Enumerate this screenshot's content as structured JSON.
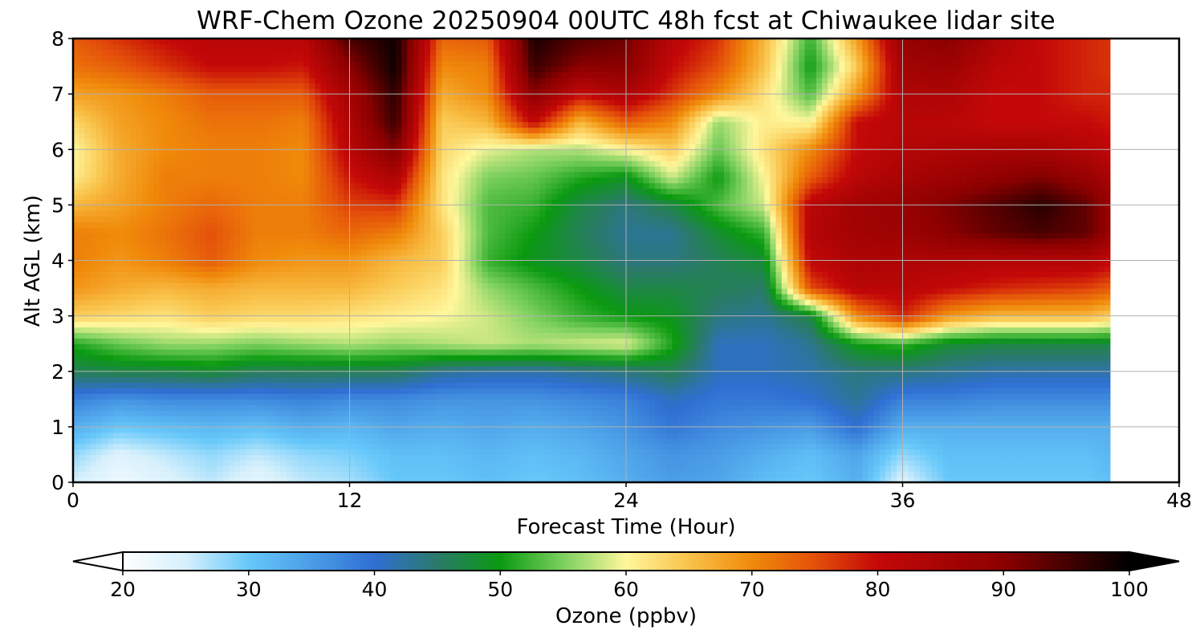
{
  "chart_data": {
    "type": "heatmap",
    "title": "WRF-Chem Ozone  20250904 00UTC 48h fcst at Chiwaukee lidar site",
    "xlabel": "Forecast Time (Hour)",
    "ylabel": "Alt AGL (km)",
    "xlim": [
      0,
      48
    ],
    "ylim": [
      0,
      8
    ],
    "x_ticks": [
      "0",
      "12",
      "24",
      "36",
      "48"
    ],
    "y_ticks": [
      "0",
      "1",
      "2",
      "3",
      "4",
      "5",
      "6",
      "7",
      "8"
    ],
    "grid": true,
    "colorbar": {
      "label": "Ozone  (ppbv)",
      "range": [
        20,
        100
      ],
      "ticks": [
        "20",
        "30",
        "40",
        "50",
        "60",
        "70",
        "80",
        "90",
        "100"
      ],
      "extend": "both",
      "stops": [
        [
          20,
          "#ffffff"
        ],
        [
          25,
          "#d6f0fc"
        ],
        [
          30,
          "#66c8fa"
        ],
        [
          35,
          "#4a9de6"
        ],
        [
          40,
          "#2f6fd2"
        ],
        [
          45,
          "#2b7a6a"
        ],
        [
          50,
          "#0a9a10"
        ],
        [
          55,
          "#7cd05e"
        ],
        [
          60,
          "#fff79c"
        ],
        [
          65,
          "#f9c24a"
        ],
        [
          70,
          "#f08a0a"
        ],
        [
          75,
          "#e4500a"
        ],
        [
          80,
          "#c40808"
        ],
        [
          90,
          "#8c0000"
        ],
        [
          100,
          "#000000"
        ]
      ]
    },
    "x": [
      0,
      2,
      4,
      6,
      8,
      10,
      12,
      14,
      16,
      18,
      20,
      22,
      24,
      26,
      28,
      30,
      32,
      34,
      36,
      38,
      40,
      42,
      44,
      45
    ],
    "y": [
      0,
      0.5,
      1,
      1.5,
      2,
      2.5,
      3,
      3.5,
      4,
      4.5,
      5,
      5.5,
      6,
      6.5,
      7,
      7.5,
      8
    ],
    "z": [
      [
        25,
        22,
        24,
        26,
        23,
        26,
        27,
        30,
        30,
        31,
        30,
        31,
        33,
        35,
        34,
        31,
        30,
        33,
        24,
        30,
        30,
        30,
        30,
        31
      ],
      [
        28,
        24,
        26,
        28,
        26,
        28,
        29,
        31,
        31,
        32,
        31,
        32,
        34,
        36,
        35,
        33,
        31,
        34,
        28,
        31,
        31,
        31,
        31,
        32
      ],
      [
        33,
        30,
        31,
        32,
        31,
        33,
        32,
        34,
        33,
        34,
        33,
        34,
        36,
        39,
        37,
        36,
        35,
        40,
        33,
        33,
        33,
        33,
        33,
        33
      ],
      [
        38,
        36,
        37,
        37,
        37,
        38,
        37,
        37,
        36,
        36,
        36,
        37,
        38,
        41,
        39,
        39,
        40,
        43,
        38,
        38,
        37,
        37,
        37,
        37
      ],
      [
        46,
        47,
        47,
        48,
        46,
        46,
        46,
        46,
        43,
        42,
        42,
        43,
        44,
        46,
        41,
        41,
        42,
        44,
        44,
        43,
        42,
        42,
        42,
        42
      ],
      [
        51,
        54,
        56,
        56,
        55,
        56,
        57,
        56,
        57,
        58,
        57,
        58,
        59,
        51,
        41,
        41,
        43,
        50,
        52,
        48,
        47,
        47,
        47,
        47
      ],
      [
        64,
        63,
        62,
        64,
        63,
        63,
        62,
        61,
        60,
        58,
        55,
        52,
        50,
        49,
        44,
        43,
        47,
        70,
        78,
        69,
        66,
        66,
        66,
        64
      ],
      [
        69,
        67,
        66,
        67,
        66,
        66,
        66,
        64,
        62,
        56,
        53,
        50,
        47,
        47,
        46,
        45,
        75,
        82,
        82,
        80,
        78,
        77,
        76,
        74
      ],
      [
        71,
        69,
        71,
        74,
        70,
        69,
        69,
        66,
        64,
        52,
        49,
        47,
        44,
        44,
        46,
        48,
        81,
        84,
        84,
        84,
        83,
        83,
        83,
        81
      ],
      [
        71,
        70,
        72,
        75,
        71,
        71,
        73,
        71,
        64,
        53,
        50,
        46,
        43,
        43,
        48,
        52,
        83,
        86,
        87,
        90,
        93,
        95,
        93,
        88
      ],
      [
        66,
        68,
        71,
        73,
        71,
        71,
        76,
        77,
        62,
        53,
        52,
        47,
        44,
        47,
        53,
        58,
        82,
        86,
        88,
        91,
        94,
        97,
        93,
        88
      ],
      [
        61,
        67,
        71,
        71,
        71,
        70,
        79,
        84,
        62,
        55,
        54,
        51,
        49,
        58,
        50,
        60,
        74,
        82,
        85,
        87,
        89,
        91,
        88,
        85
      ],
      [
        60,
        67,
        70,
        71,
        71,
        70,
        82,
        91,
        63,
        59,
        57,
        57,
        60,
        64,
        54,
        62,
        70,
        80,
        83,
        84,
        85,
        85,
        83,
        81
      ],
      [
        63,
        68,
        70,
        72,
        72,
        71,
        84,
        96,
        64,
        66,
        81,
        66,
        74,
        70,
        56,
        61,
        60,
        80,
        82,
        82,
        80,
        80,
        80,
        79
      ],
      [
        68,
        69,
        71,
        74,
        74,
        74,
        86,
        97,
        67,
        70,
        90,
        80,
        84,
        77,
        70,
        62,
        53,
        69,
        84,
        84,
        80,
        80,
        78,
        78
      ],
      [
        72,
        74,
        77,
        80,
        80,
        79,
        90,
        99,
        70,
        71,
        96,
        90,
        90,
        80,
        75,
        65,
        50,
        64,
        86,
        87,
        82,
        80,
        78,
        77
      ],
      [
        74,
        77,
        80,
        82,
        82,
        82,
        95,
        99,
        73,
        74,
        98,
        94,
        92,
        82,
        77,
        66,
        52,
        68,
        88,
        90,
        84,
        80,
        78,
        77
      ]
    ]
  }
}
